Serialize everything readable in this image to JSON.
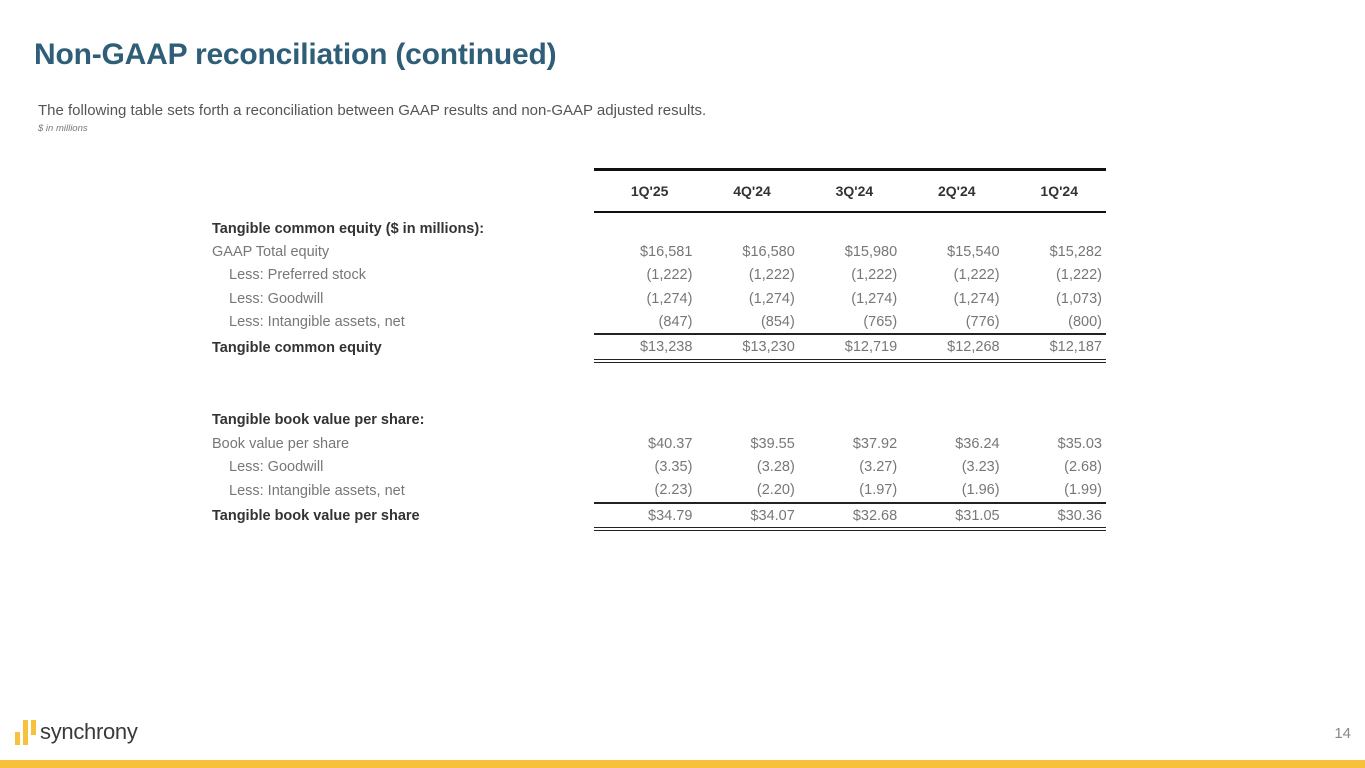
{
  "page": {
    "title": "Non-GAAP reconciliation (continued)",
    "subtitle": "The following table sets forth a reconciliation between GAAP results and non-GAAP adjusted results.",
    "units": "$ in millions",
    "page_number": "14"
  },
  "brand": {
    "name": "synchrony",
    "accent_color": "#f6c23e",
    "title_color": "#2f5f78"
  },
  "table": {
    "columns": [
      "1Q'25",
      "4Q'24",
      "3Q'24",
      "2Q'24",
      "1Q'24"
    ],
    "section1": {
      "header": "Tangible common equity ($ in millions):",
      "rows": [
        {
          "label": "GAAP Total equity",
          "values": [
            "$16,581",
            "$16,580",
            "$15,980",
            "$15,540",
            "$15,282"
          ]
        },
        {
          "label": "Less: Preferred stock",
          "values": [
            "(1,222)",
            "(1,222)",
            "(1,222)",
            "(1,222)",
            "(1,222)"
          ]
        },
        {
          "label": "Less: Goodwill",
          "values": [
            "(1,274)",
            "(1,274)",
            "(1,274)",
            "(1,274)",
            "(1,073)"
          ]
        },
        {
          "label": "Less: Intangible assets, net",
          "values": [
            "(847)",
            "(854)",
            "(765)",
            "(776)",
            "(800)"
          ]
        }
      ],
      "total": {
        "label": "Tangible common equity",
        "values": [
          "$13,238",
          "$13,230",
          "$12,719",
          "$12,268",
          "$12,187"
        ]
      }
    },
    "section2": {
      "header": "Tangible book value per share:",
      "rows": [
        {
          "label": "Book value per share",
          "values": [
            "$40.37",
            "$39.55",
            "$37.92",
            "$36.24",
            "$35.03"
          ]
        },
        {
          "label": "Less: Goodwill",
          "values": [
            "(3.35)",
            "(3.28)",
            "(3.27)",
            "(3.23)",
            "(2.68)"
          ]
        },
        {
          "label": "Less: Intangible assets, net",
          "values": [
            "(2.23)",
            "(2.20)",
            "(1.97)",
            "(1.96)",
            "(1.99)"
          ]
        }
      ],
      "total": {
        "label": "Tangible book value per share",
        "values": [
          "$34.79",
          "$34.07",
          "$32.68",
          "$31.05",
          "$30.36"
        ]
      }
    }
  }
}
